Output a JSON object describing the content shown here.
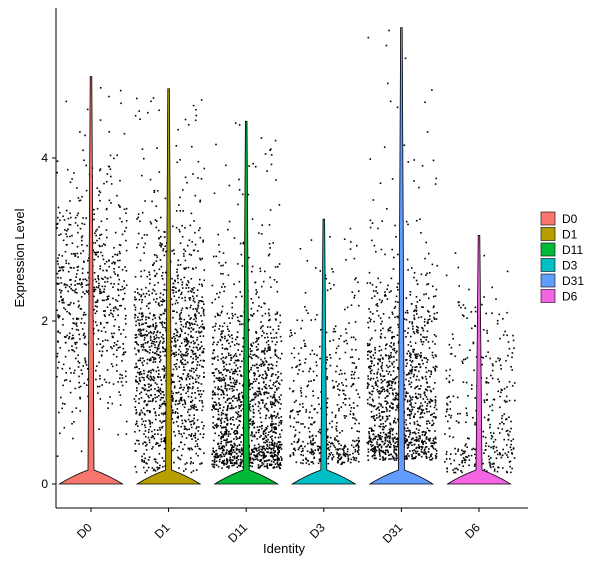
{
  "chart_data": {
    "type": "violin",
    "xlabel": "Identity",
    "ylabel": "Expression Level",
    "ylim": [
      -0.75,
      5.85
    ],
    "yticks": [
      0,
      2,
      4
    ],
    "yticklabels": [
      "0",
      "2",
      "4"
    ],
    "categories": [
      "D0",
      "D1",
      "D11",
      "D3",
      "D31",
      "D6"
    ],
    "legend": {
      "position": "right",
      "entries": [
        "D0",
        "D1",
        "D11",
        "D3",
        "D31",
        "D6"
      ]
    },
    "grid": false,
    "series": [
      {
        "name": "D0",
        "color": "#F8766D",
        "max": 5.0,
        "point_min": 0.2,
        "point_mode": 2.3,
        "n_points": 650,
        "zero_width": 0.9
      },
      {
        "name": "D1",
        "color": "#B79F00",
        "max": 4.85,
        "point_min": 0.15,
        "point_mode": 1.5,
        "n_points": 1300,
        "zero_width": 0.9
      },
      {
        "name": "D11",
        "color": "#00BA38",
        "max": 4.45,
        "point_min": 0.2,
        "point_mode": 0.9,
        "n_points": 1400,
        "zero_width": 0.9
      },
      {
        "name": "D3",
        "color": "#00BFC4",
        "max": 3.25,
        "point_min": 0.25,
        "point_mode": 0.8,
        "n_points": 500,
        "zero_width": 0.9
      },
      {
        "name": "D31",
        "color": "#619CFF",
        "max": 5.6,
        "point_min": 0.3,
        "point_mode": 1.0,
        "n_points": 1200,
        "zero_width": 0.9
      },
      {
        "name": "D6",
        "color": "#F564E3",
        "max": 3.05,
        "point_min": 0.15,
        "point_mode": 0.8,
        "n_points": 350,
        "zero_width": 0.9
      }
    ]
  }
}
